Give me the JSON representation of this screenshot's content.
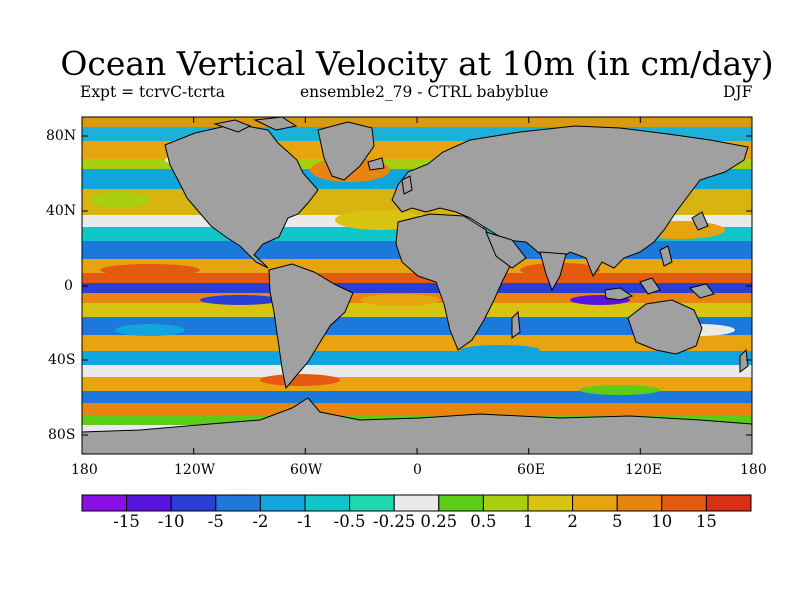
{
  "title": "Ocean Vertical Velocity at 10m (in cm/day)",
  "subtitle_left": "Expt = tcrvC-tcrta",
  "subtitle_center": "ensemble2_79 - CTRL babyblue",
  "subtitle_right": "DJF",
  "y_ticks": [
    "80N",
    "40N",
    "0",
    "40S",
    "80S"
  ],
  "x_ticks": [
    "180",
    "120W",
    "60W",
    "0",
    "60E",
    "120E",
    "180"
  ],
  "colorbar": {
    "labels": [
      "-15",
      "-10",
      "-5",
      "-2",
      "-1",
      "-0.5",
      "-0.25",
      "0.25",
      "0.5",
      "1",
      "2",
      "5",
      "10",
      "15"
    ],
    "colors": [
      "#8a0fe6",
      "#5a14e0",
      "#2a3ed6",
      "#1d78dc",
      "#12a4dc",
      "#10c6c8",
      "#1ed6b0",
      "#eaeaea",
      "#5ccc18",
      "#a8d010",
      "#d8c410",
      "#e6a410",
      "#e88410",
      "#e45a10",
      "#d83012"
    ]
  },
  "colors": {
    "land": "#a0a0a0"
  }
}
